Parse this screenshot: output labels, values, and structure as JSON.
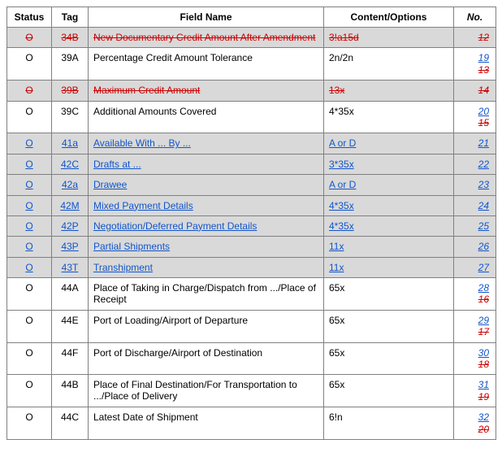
{
  "colors": {
    "red": "#cc0000",
    "blue": "#1155cc",
    "shade": "#d9d9d9",
    "border": "#808080"
  },
  "columns": {
    "status": "Status",
    "tag": "Tag",
    "field": "Field Name",
    "options": "Content/Options",
    "no": "No."
  },
  "rows": [
    {
      "shaded": true,
      "status": {
        "text": "O",
        "style": "red strike"
      },
      "tag": {
        "text": "34B",
        "style": "red strike"
      },
      "field": {
        "text": "New Documentary Credit Amount After Amendment",
        "style": "red strike"
      },
      "opt": {
        "text": "3!a15d",
        "style": "red strike"
      },
      "nos": [
        {
          "text": "12",
          "style": "red strike ital"
        }
      ]
    },
    {
      "shaded": false,
      "status": {
        "text": "O",
        "style": ""
      },
      "tag": {
        "text": "39A",
        "style": ""
      },
      "field": {
        "text": "Percentage Credit Amount Tolerance",
        "style": ""
      },
      "opt": {
        "text": "2n/2n",
        "style": ""
      },
      "nos": [
        {
          "text": "19",
          "style": "blue link ital"
        },
        {
          "text": "13",
          "style": "red strike ital"
        }
      ]
    },
    {
      "shaded": true,
      "status": {
        "text": "O",
        "style": "red strike"
      },
      "tag": {
        "text": "39B",
        "style": "red strike"
      },
      "field": {
        "text": "Maximum Credit Amount",
        "style": "red strike"
      },
      "opt": {
        "text": "13x",
        "style": "red strike"
      },
      "nos": [
        {
          "text": "14",
          "style": "red strike ital"
        }
      ]
    },
    {
      "shaded": false,
      "status": {
        "text": "O",
        "style": ""
      },
      "tag": {
        "text": "39C",
        "style": ""
      },
      "field": {
        "text": "Additional Amounts Covered",
        "style": ""
      },
      "opt": {
        "text": "4*35x",
        "style": ""
      },
      "nos": [
        {
          "text": "20",
          "style": "blue link ital"
        },
        {
          "text": "15",
          "style": "red strike ital"
        }
      ]
    },
    {
      "shaded": true,
      "status": {
        "text": "O",
        "style": "blue link"
      },
      "tag": {
        "text": "41a",
        "style": "blue link"
      },
      "field": {
        "text": "Available With ... By ...",
        "style": "blue link"
      },
      "opt": {
        "text": "A or D",
        "style": "blue link"
      },
      "nos": [
        {
          "text": "21",
          "style": "blue link ital"
        }
      ]
    },
    {
      "shaded": true,
      "status": {
        "text": "O",
        "style": "blue link"
      },
      "tag": {
        "text": "42C",
        "style": "blue link"
      },
      "field": {
        "text": "Drafts at ...",
        "style": "blue link"
      },
      "opt": {
        "text": "3*35x",
        "style": "blue link"
      },
      "nos": [
        {
          "text": "22",
          "style": "blue link ital"
        }
      ]
    },
    {
      "shaded": true,
      "status": {
        "text": "O",
        "style": "blue link"
      },
      "tag": {
        "text": "42a",
        "style": "blue link"
      },
      "field": {
        "text": "Drawee",
        "style": "blue link"
      },
      "opt": {
        "text": "A or D",
        "style": "blue link"
      },
      "nos": [
        {
          "text": "23",
          "style": "blue link ital"
        }
      ]
    },
    {
      "shaded": true,
      "status": {
        "text": "O",
        "style": "blue link"
      },
      "tag": {
        "text": "42M",
        "style": "blue link"
      },
      "field": {
        "text": "Mixed Payment Details",
        "style": "blue link"
      },
      "opt": {
        "text": "4*35x",
        "style": "blue link"
      },
      "nos": [
        {
          "text": "24",
          "style": "blue link ital"
        }
      ]
    },
    {
      "shaded": true,
      "status": {
        "text": "O",
        "style": "blue link"
      },
      "tag": {
        "text": "42P",
        "style": "blue link"
      },
      "field": {
        "text": "Negotiation/Deferred Payment Details",
        "style": "blue link"
      },
      "opt": {
        "text": "4*35x",
        "style": "blue link"
      },
      "nos": [
        {
          "text": "25",
          "style": "blue link ital"
        }
      ]
    },
    {
      "shaded": true,
      "status": {
        "text": "O",
        "style": "blue link"
      },
      "tag": {
        "text": "43P",
        "style": "blue link"
      },
      "field": {
        "text": "Partial Shipments",
        "style": "blue link"
      },
      "opt": {
        "text": "11x",
        "style": "blue link"
      },
      "nos": [
        {
          "text": "26",
          "style": "blue link ital"
        }
      ]
    },
    {
      "shaded": true,
      "status": {
        "text": "O",
        "style": "blue link"
      },
      "tag": {
        "text": "43T",
        "style": "blue link"
      },
      "field": {
        "text": "Transhipment",
        "style": "blue link"
      },
      "opt": {
        "text": "11x",
        "style": "blue link"
      },
      "nos": [
        {
          "text": "27",
          "style": "blue link ital"
        }
      ]
    },
    {
      "shaded": false,
      "status": {
        "text": "O",
        "style": ""
      },
      "tag": {
        "text": "44A",
        "style": ""
      },
      "field": {
        "text": "Place of Taking in Charge/Dispatch from .../Place of Receipt",
        "style": ""
      },
      "opt": {
        "text": "65x",
        "style": ""
      },
      "nos": [
        {
          "text": "28",
          "style": "blue link ital"
        },
        {
          "text": "16",
          "style": "red strike ital"
        }
      ]
    },
    {
      "shaded": false,
      "status": {
        "text": "O",
        "style": ""
      },
      "tag": {
        "text": "44E",
        "style": ""
      },
      "field": {
        "text": "Port of Loading/Airport of Departure",
        "style": ""
      },
      "opt": {
        "text": "65x",
        "style": ""
      },
      "nos": [
        {
          "text": "29",
          "style": "blue link ital"
        },
        {
          "text": "17",
          "style": "red strike ital"
        }
      ]
    },
    {
      "shaded": false,
      "status": {
        "text": "O",
        "style": ""
      },
      "tag": {
        "text": "44F",
        "style": ""
      },
      "field": {
        "text": "Port of Discharge/Airport of Destination",
        "style": ""
      },
      "opt": {
        "text": "65x",
        "style": ""
      },
      "nos": [
        {
          "text": "30",
          "style": "blue link ital"
        },
        {
          "text": "18",
          "style": "red strike ital"
        }
      ]
    },
    {
      "shaded": false,
      "status": {
        "text": "O",
        "style": ""
      },
      "tag": {
        "text": "44B",
        "style": ""
      },
      "field": {
        "text": "Place of Final Destination/For Transportation to .../Place of Delivery",
        "style": ""
      },
      "opt": {
        "text": "65x",
        "style": ""
      },
      "nos": [
        {
          "text": "31",
          "style": "blue link ital"
        },
        {
          "text": "19",
          "style": "red strike ital"
        }
      ]
    },
    {
      "shaded": false,
      "status": {
        "text": "O",
        "style": ""
      },
      "tag": {
        "text": "44C",
        "style": ""
      },
      "field": {
        "text": "Latest Date of Shipment",
        "style": ""
      },
      "opt": {
        "text": "6!n",
        "style": ""
      },
      "nos": [
        {
          "text": "32",
          "style": "blue link ital"
        },
        {
          "text": "20",
          "style": "red strike ital"
        }
      ]
    }
  ]
}
